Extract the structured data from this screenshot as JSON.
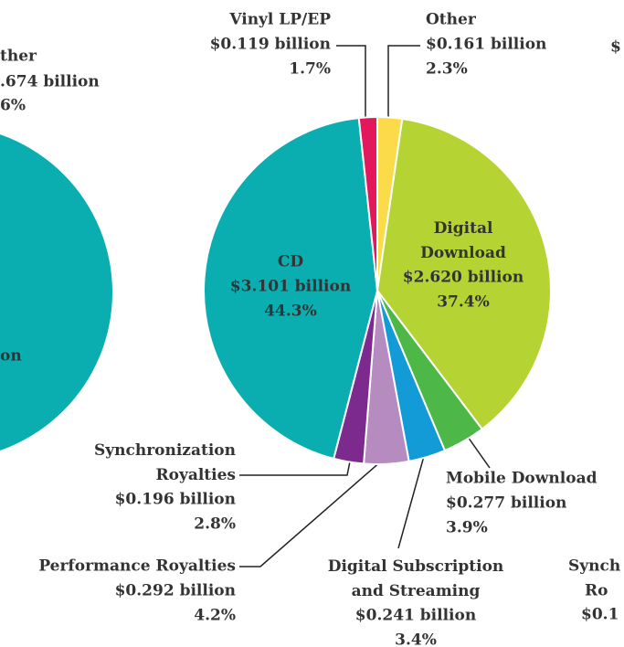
{
  "chart_data": {
    "type": "pie",
    "categories": [
      "Other",
      "Digital Download",
      "Mobile Download",
      "Digital Subscription and Streaming",
      "Performance Royalties",
      "Synchronization Royalties",
      "CD",
      "Vinyl LP/EP"
    ],
    "values": [
      0.161,
      2.62,
      0.277,
      0.241,
      0.292,
      0.196,
      3.101,
      0.119
    ],
    "value_labels": [
      "$0.161 billion",
      "$2.620 billion",
      "$0.277 billion",
      "$0.241 billion",
      "$0.292 billion",
      "$0.196 billion",
      "$3.101 billion",
      "$0.119 billion"
    ],
    "percent_labels": [
      "2.3%",
      "37.4%",
      "3.9%",
      "3.4%",
      "4.2%",
      "2.8%",
      "44.3%",
      "1.7%"
    ],
    "colors": [
      "#fcdb4a",
      "#b6d334",
      "#4db848",
      "#129bd7",
      "#b68cc0",
      "#7d2a8e",
      "#0aaeb0",
      "#e3175b"
    ]
  },
  "clipped_labels": [
    "ther",
    ".674 billion",
    "6%",
    "on",
    "$",
    "Synch",
    "Ro",
    "$0.1"
  ]
}
